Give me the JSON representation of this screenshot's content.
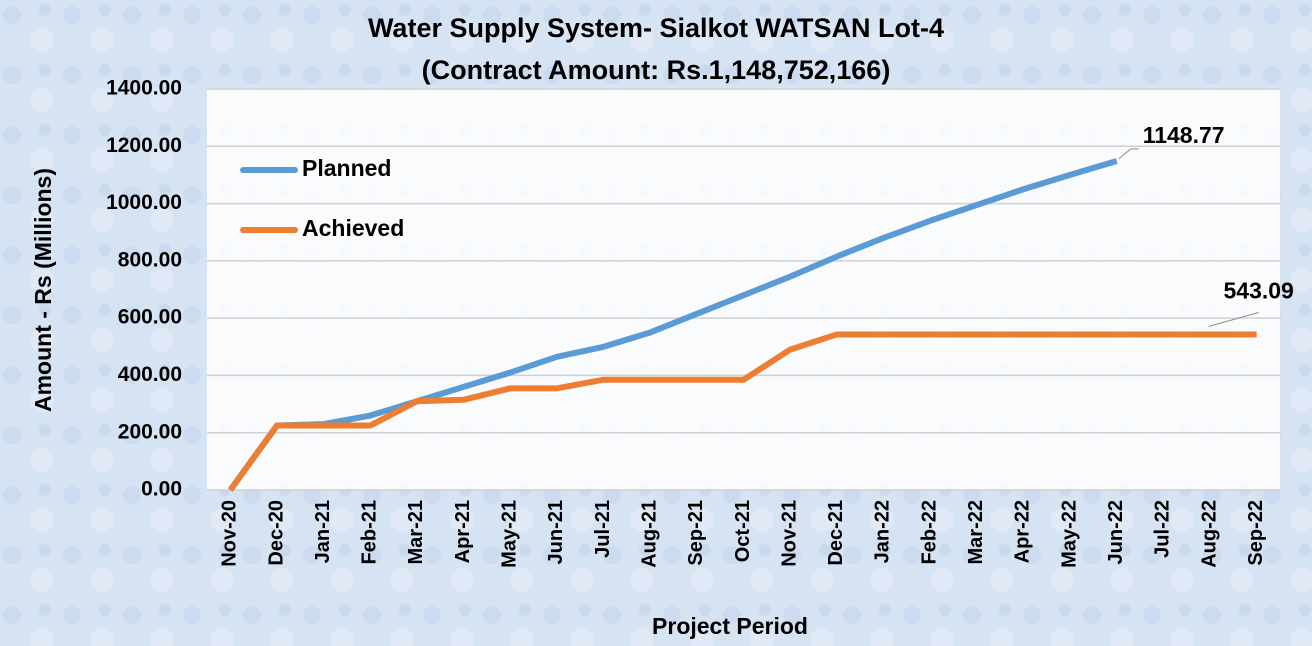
{
  "chart_data": {
    "type": "line",
    "title": "Water Supply System- Sialkot WATSAN Lot-4",
    "subtitle": "(Contract Amount: Rs.1,148,752,166)",
    "x_label": "Project Period",
    "y_label": "Amount - Rs (Millions)",
    "categories": [
      "Nov-20",
      "Dec-20",
      "Jan-21",
      "Feb-21",
      "Mar-21",
      "Apr-21",
      "May-21",
      "Jun-21",
      "Jul-21",
      "Aug-21",
      "Sep-21",
      "Oct-21",
      "Nov-21",
      "Dec-21",
      "Jan-22",
      "Feb-22",
      "Mar-22",
      "Apr-22",
      "May-22",
      "Jun-22",
      "Jul-22",
      "Aug-22",
      "Sep-22"
    ],
    "series": [
      {
        "name": "Planned",
        "color": "#5b9bd5",
        "values": [
          0,
          225,
          230,
          260,
          310,
          360,
          410,
          465,
          500,
          550,
          615,
          680,
          745,
          815,
          880,
          940,
          995,
          1050,
          1100,
          1148.77,
          null,
          null,
          null
        ]
      },
      {
        "name": "Achieved",
        "color": "#ed7d31",
        "values": [
          0,
          225,
          225,
          225,
          310,
          315,
          355,
          355,
          385,
          385,
          385,
          385,
          490,
          543.09,
          543.09,
          543.09,
          543.09,
          543.09,
          543.09,
          543.09,
          543.09,
          543.09,
          543.09
        ]
      }
    ],
    "ylim": [
      0,
      1400
    ],
    "yticks": [
      {
        "value": 0,
        "label": "0.00"
      },
      {
        "value": 200,
        "label": "200.00"
      },
      {
        "value": 400,
        "label": "400.00"
      },
      {
        "value": 600,
        "label": "600.00"
      },
      {
        "value": 800,
        "label": "800.00"
      },
      {
        "value": 1000,
        "label": "1000.00"
      },
      {
        "value": 1200,
        "label": "1200.00"
      },
      {
        "value": 1400,
        "label": "1400.00"
      }
    ],
    "grid": true,
    "legend": "upper left"
  }
}
